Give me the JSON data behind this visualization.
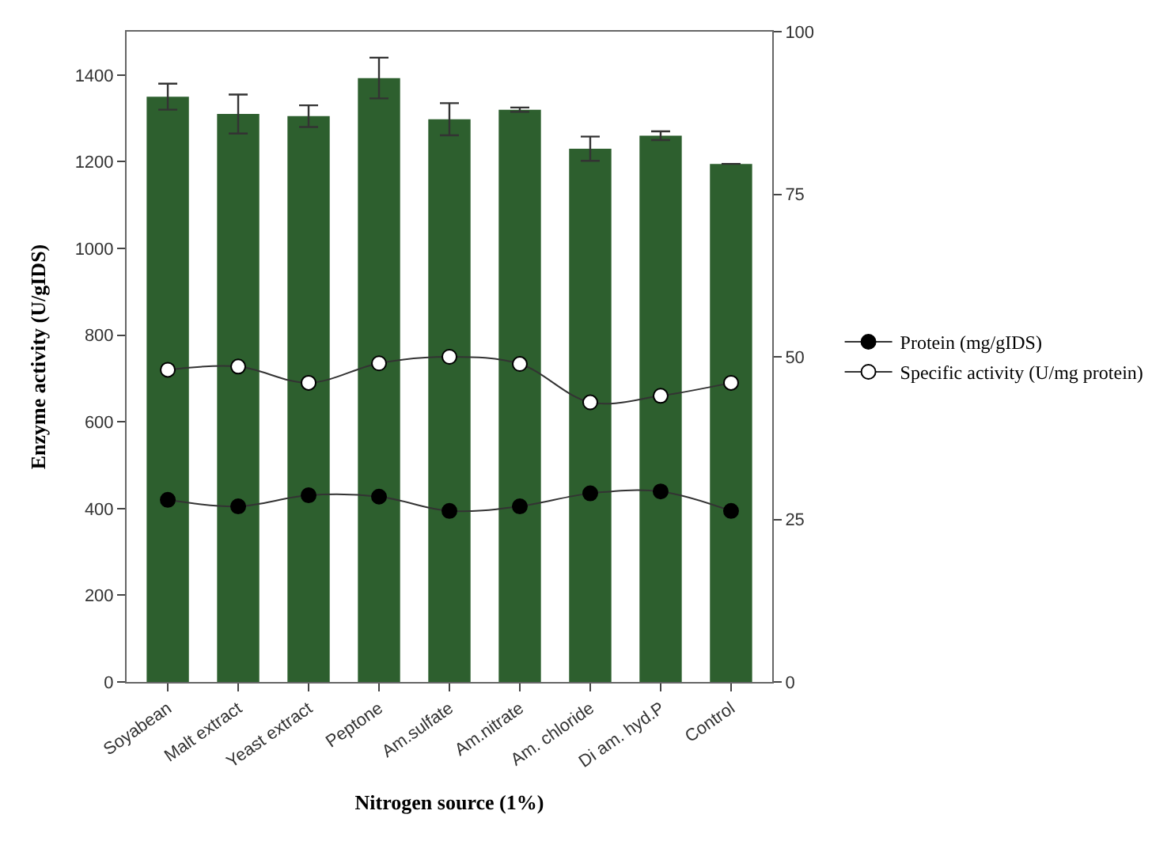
{
  "chart_data": {
    "type": "bar",
    "xlabel": "Nitrogen source (1%)",
    "ylabel": "Enzyme activity (U/gIDS)",
    "categories": [
      "Soyabean",
      "Malt extract",
      "Yeast extract",
      "Peptone",
      "Am.sulfate",
      "Am.nitrate",
      "Am. chloride",
      "Di am. hyd.P",
      "Control"
    ],
    "series": [
      {
        "color": "#2d5f2e",
        "values": [
          1350,
          1310,
          1305,
          1393,
          1298,
          1320,
          1230,
          1260,
          1195
        ],
        "errors": [
          30,
          45,
          25,
          47,
          37,
          5,
          28,
          10,
          null
        ]
      },
      {
        "type": "line",
        "name": "Protein (mg/gIDS)",
        "axis": "y2",
        "color": "#000000",
        "marker": "circle",
        "values": [
          28,
          27,
          28.7,
          28.5,
          26.3,
          27,
          29,
          29.3,
          26.3
        ]
      },
      {
        "type": "line",
        "name": "Specific activity (U/mg protein)",
        "axis": "y2",
        "color": "#ffffff",
        "marker": "circle",
        "values": [
          48,
          48.5,
          46,
          49,
          50,
          48.9,
          43,
          44,
          46
        ]
      }
    ],
    "ylim": [
      0,
      1500
    ],
    "yticks": [
      0,
      200,
      400,
      600,
      800,
      1000,
      1200,
      1400
    ],
    "y2lim": [
      0,
      100
    ],
    "y2ticks": [
      0,
      25,
      50,
      75,
      100
    ],
    "legend": "right"
  }
}
